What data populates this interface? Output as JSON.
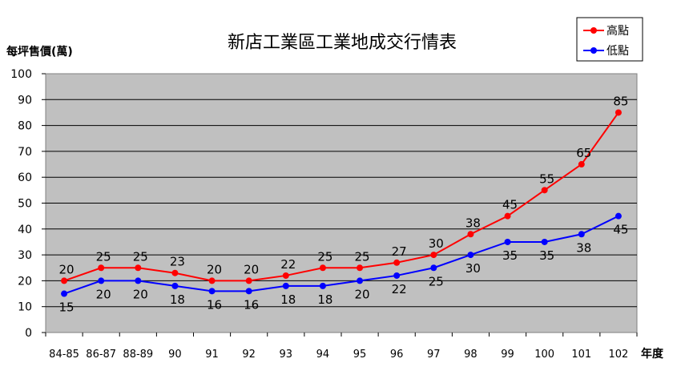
{
  "chart_data": {
    "type": "line",
    "title": "新店工業區工業地成交行情表",
    "ylabel": "每坪售價(萬)",
    "xlabel": "年度",
    "categories": [
      "84-85",
      "86-87",
      "88-89",
      "90",
      "91",
      "92",
      "93",
      "94",
      "95",
      "96",
      "97",
      "98",
      "99",
      "100",
      "101",
      "102"
    ],
    "ylim": [
      0,
      100
    ],
    "yticks": [
      "0",
      "10",
      "20",
      "30",
      "40",
      "50",
      "60",
      "70",
      "80",
      "90",
      "100"
    ],
    "grid": true,
    "plot_background": "#c0c0c0",
    "legend_position": "top-right",
    "series": [
      {
        "name": "高點",
        "color": "#ff0000",
        "values": [
          20,
          25,
          25,
          23,
          20,
          20,
          22,
          25,
          25,
          27,
          30,
          38,
          45,
          55,
          65,
          85
        ],
        "labels": [
          "20",
          "25",
          "25",
          "23",
          "20",
          "20",
          "22",
          "25",
          "25",
          "27",
          "30",
          "38",
          "45",
          "55",
          "65",
          "85"
        ]
      },
      {
        "name": "低點",
        "color": "#0000ff",
        "values": [
          15,
          20,
          20,
          18,
          16,
          16,
          18,
          18,
          20,
          22,
          25,
          30,
          35,
          35,
          38,
          45
        ],
        "labels": [
          "15",
          "20",
          "20",
          "18",
          "16",
          "16",
          "18",
          "18",
          "20",
          "22",
          "25",
          "30",
          "35",
          "35",
          "38",
          "45"
        ]
      }
    ]
  }
}
